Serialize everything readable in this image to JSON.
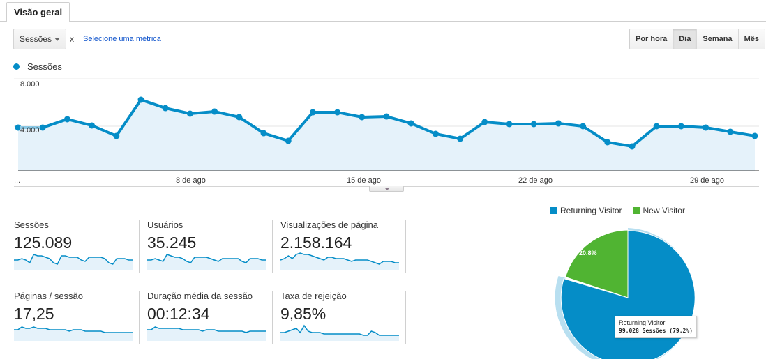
{
  "tabs": [
    {
      "label": "Visão geral",
      "active": true
    }
  ],
  "toolbar": {
    "metric_select_value": "Sessões",
    "remove_label": "x",
    "select_metric_link": "Selecione uma métrica",
    "granularity_buttons": [
      {
        "label": "Por hora",
        "active": false
      },
      {
        "label": "Dia",
        "active": true
      },
      {
        "label": "Semana",
        "active": false
      },
      {
        "label": "Mês",
        "active": false
      }
    ]
  },
  "colors": {
    "series": "#058dc7",
    "area_fill": "#e5f2fa",
    "new_visitor": "#50b432",
    "pie_highlight": "#b8dff0"
  },
  "chart_data": [
    {
      "type": "area",
      "title": "",
      "legend": [
        "Sessões"
      ],
      "xlabel": "",
      "ylabel": "",
      "y_ticks": [
        "4.000",
        "8.000"
      ],
      "ylim": [
        0,
        8000
      ],
      "grid": true,
      "x_tick_labels": [
        "...",
        "8 de ago",
        "15 de ago",
        "22 de ago",
        "29 de ago"
      ],
      "x": [
        "1 de ago",
        "2 de ago",
        "3 de ago",
        "4 de ago",
        "5 de ago",
        "6 de ago",
        "7 de ago",
        "8 de ago",
        "9 de ago",
        "10 de ago",
        "11 de ago",
        "12 de ago",
        "13 de ago",
        "14 de ago",
        "15 de ago",
        "16 de ago",
        "17 de ago",
        "18 de ago",
        "19 de ago",
        "20 de ago",
        "21 de ago",
        "22 de ago",
        "23 de ago",
        "24 de ago",
        "25 de ago",
        "26 de ago",
        "27 de ago",
        "28 de ago",
        "29 de ago",
        "30 de ago",
        "31 de ago"
      ],
      "series": [
        {
          "name": "Sessões",
          "values": [
            3870,
            3870,
            4670,
            4070,
            3070,
            6530,
            5730,
            5200,
            5400,
            4870,
            3330,
            2600,
            5330,
            5330,
            4870,
            4930,
            4270,
            3270,
            2800,
            4400,
            4200,
            4200,
            4270,
            4000,
            2470,
            2070,
            4000,
            4000,
            3870,
            3470,
            3070
          ]
        }
      ]
    },
    {
      "type": "pie",
      "title": "",
      "legend": [
        "Returning Visitor",
        "New Visitor"
      ],
      "categories": [
        "Returning Visitor",
        "New Visitor"
      ],
      "values": [
        79.2,
        20.8
      ],
      "labels": [
        "",
        "20.8%"
      ],
      "tooltip": {
        "title": "Returning Visitor",
        "value": "99.028 Sessões (79.2%)"
      }
    }
  ],
  "main_chart": {
    "legend_label": "Sessões",
    "y_ticks": [
      {
        "label": "8.000"
      },
      {
        "label": "4.000"
      }
    ],
    "x_ticks": [
      {
        "label": "..."
      },
      {
        "label": "8 de ago"
      },
      {
        "label": "15 de ago"
      },
      {
        "label": "22 de ago"
      },
      {
        "label": "29 de ago"
      }
    ]
  },
  "scorecards": [
    {
      "label": "Sessões",
      "value": "125.089",
      "spark": [
        4,
        4,
        5,
        4,
        2,
        8,
        7,
        7,
        6,
        5,
        2,
        1,
        7,
        7,
        6,
        6,
        6,
        4,
        3,
        6,
        6,
        6,
        6,
        5,
        2,
        1,
        5,
        5,
        5,
        4,
        4
      ]
    },
    {
      "label": "Usuários",
      "value": "35.245",
      "spark": [
        4,
        4,
        5,
        4,
        3,
        8,
        7,
        6,
        6,
        5,
        3,
        2,
        6,
        6,
        6,
        6,
        5,
        4,
        3,
        5,
        5,
        5,
        5,
        5,
        3,
        2,
        5,
        5,
        5,
        4,
        4
      ]
    },
    {
      "label": "Visualizações de página",
      "value": "2.158.164",
      "spark": [
        4,
        5,
        7,
        5,
        8,
        9,
        8,
        8,
        7,
        6,
        5,
        4,
        6,
        6,
        5,
        5,
        5,
        4,
        3,
        4,
        4,
        4,
        4,
        3,
        2,
        1,
        3,
        3,
        3,
        2,
        2
      ]
    },
    {
      "label": "Páginas / sessão",
      "value": "17,25",
      "spark": [
        5,
        5,
        7,
        6,
        6,
        7,
        6,
        6,
        6,
        5,
        5,
        5,
        5,
        5,
        4,
        5,
        5,
        5,
        4,
        4,
        4,
        4,
        4,
        3,
        3,
        3,
        3,
        3,
        3,
        3,
        3
      ]
    },
    {
      "label": "Duração média da sessão",
      "value": "00:12:34",
      "spark": [
        5,
        5,
        7,
        6,
        6,
        6,
        6,
        6,
        6,
        5,
        5,
        5,
        5,
        5,
        4,
        5,
        5,
        5,
        4,
        4,
        4,
        4,
        4,
        4,
        4,
        3,
        4,
        4,
        4,
        4,
        4
      ]
    },
    {
      "label": "Taxa de rejeição",
      "value": "9,85%",
      "spark": [
        3,
        3,
        4,
        5,
        6,
        3,
        8,
        4,
        3,
        3,
        3,
        2,
        2,
        2,
        2,
        2,
        2,
        2,
        2,
        2,
        2,
        1,
        1,
        4,
        3,
        1,
        1,
        1,
        1,
        1,
        1
      ]
    }
  ],
  "pie": {
    "legend": [
      {
        "label": "Returning Visitor",
        "color": "#058dc7"
      },
      {
        "label": "New Visitor",
        "color": "#50b432"
      }
    ],
    "slice_label": "20.8%",
    "tooltip_title": "Returning Visitor",
    "tooltip_value": "99.028 Sessões (79.2%)"
  }
}
